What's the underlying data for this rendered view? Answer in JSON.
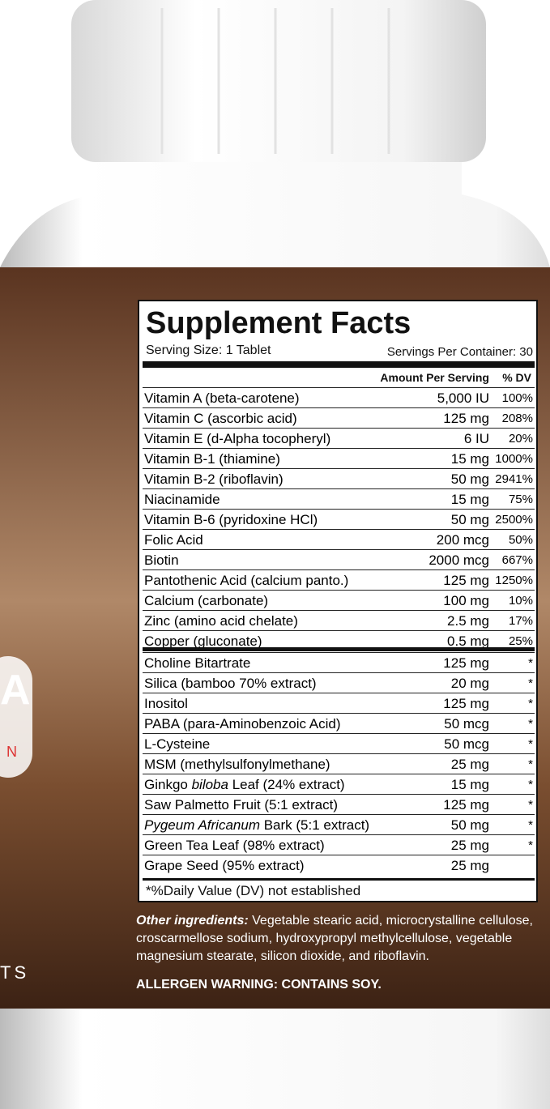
{
  "label": {
    "title": "Supplement Facts",
    "serving_size": "Serving Size: 1 Tablet",
    "servings_per_container": "Servings Per Container: 30",
    "header_amount": "Amount Per Serving",
    "header_dv": "% DV",
    "italic_part": 1,
    "vitamins": [
      {
        "name_parts": [
          "Vitamin A (beta-carotene)"
        ],
        "amount": "5,000 IU",
        "dv": "100%"
      },
      {
        "name_parts": [
          "Vitamin C (ascorbic acid)"
        ],
        "amount": "125 mg",
        "dv": "208%"
      },
      {
        "name_parts": [
          "Vitamin E (d-Alpha tocopheryl)"
        ],
        "amount": "6 IU",
        "dv": "20%"
      },
      {
        "name_parts": [
          "Vitamin B-1 (thiamine)"
        ],
        "amount": "15 mg",
        "dv": "1000%"
      },
      {
        "name_parts": [
          "Vitamin B-2 (riboflavin)"
        ],
        "amount": "50 mg",
        "dv": "2941%"
      },
      {
        "name_parts": [
          "Niacinamide"
        ],
        "amount": "15 mg",
        "dv": "75%"
      },
      {
        "name_parts": [
          "Vitamin B-6 (pyridoxine HCl)"
        ],
        "amount": "50 mg",
        "dv": "2500%"
      },
      {
        "name_parts": [
          "Folic Acid"
        ],
        "amount": "200 mcg",
        "dv": "50%"
      },
      {
        "name_parts": [
          "Biotin"
        ],
        "amount": "2000 mcg",
        "dv": "667%"
      },
      {
        "name_parts": [
          "Pantothenic Acid (calcium panto.)"
        ],
        "amount": "125 mg",
        "dv": "1250%"
      },
      {
        "name_parts": [
          "Calcium (carbonate)"
        ],
        "amount": "100 mg",
        "dv": "10%"
      },
      {
        "name_parts": [
          "Zinc (amino acid chelate)"
        ],
        "amount": "2.5 mg",
        "dv": "17%"
      },
      {
        "name_parts": [
          "Copper (gluconate)"
        ],
        "amount": "0.5 mg",
        "dv": "25%"
      }
    ],
    "others": [
      {
        "name_parts": [
          "Choline Bitartrate"
        ],
        "amount": "125 mg",
        "dv": "*"
      },
      {
        "name_parts": [
          "Silica (bamboo 70% extract)"
        ],
        "amount": "20 mg",
        "dv": "*"
      },
      {
        "name_parts": [
          "Inositol"
        ],
        "amount": "125 mg",
        "dv": "*"
      },
      {
        "name_parts": [
          "PABA (para-Aminobenzoic Acid)"
        ],
        "amount": "50 mcg",
        "dv": "*"
      },
      {
        "name_parts": [
          "L-Cysteine"
        ],
        "amount": "50 mcg",
        "dv": "*"
      },
      {
        "name_parts": [
          "MSM (methylsulfonylmethane)"
        ],
        "amount": "25 mg",
        "dv": "*"
      },
      {
        "name_parts": [
          "Ginkgo ",
          "biloba",
          " Leaf (24% extract)"
        ],
        "amount": "15 mg",
        "dv": "*"
      },
      {
        "name_parts": [
          "Saw Palmetto Fruit (5:1 extract)"
        ],
        "amount": "125 mg",
        "dv": "*"
      },
      {
        "name_parts": [
          "",
          "Pygeum Africanum",
          " Bark (5:1 extract)"
        ],
        "amount": "50 mg",
        "dv": "*"
      },
      {
        "name_parts": [
          "Green Tea Leaf (98% extract)"
        ],
        "amount": "25 mg",
        "dv": "*"
      },
      {
        "name_parts": [
          "Grape Seed (95% extract)"
        ],
        "amount": "25 mg",
        "dv": null
      }
    ],
    "footnote": "*%Daily Value (DV) not established"
  },
  "other_ingredients_label": "Other ingredients:",
  "other_ingredients": "Vegetable stearic acid, microcrystalline cellulose, croscarmellose sodium, hydroxypropyl methylcellulose, vegetable magnesium stearate, silicon dioxide, and riboflavin.",
  "allergen_warning": "ALLERGEN WARNING: CONTAINS SOY.",
  "side_text": [
    "A",
    "N",
    "TS"
  ]
}
